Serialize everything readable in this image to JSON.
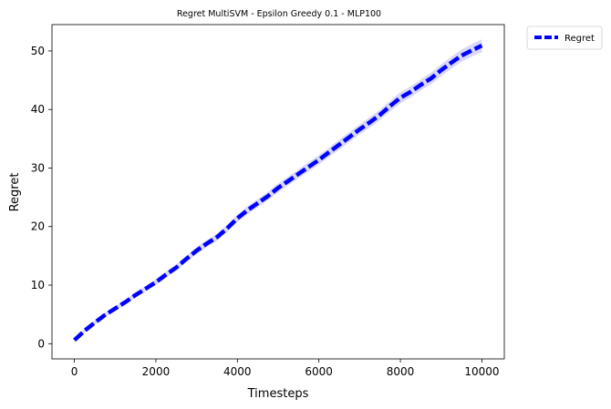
{
  "chart_data": {
    "type": "line",
    "title": "Regret MultiSVM - Epsilon Greedy 0.1 - MLP100",
    "xlabel": "Timesteps",
    "ylabel": "Regret",
    "xlim": [
      -550,
      10550
    ],
    "ylim": [
      -2.6,
      54.5
    ],
    "xticks": [
      0,
      2000,
      4000,
      6000,
      8000,
      10000
    ],
    "yticks": [
      0,
      10,
      20,
      30,
      40,
      50
    ],
    "grid": false,
    "legend_position": "outside-top-right",
    "series": [
      {
        "name": "Regret",
        "color": "#0000ff",
        "band_color": "#d8d8f8",
        "line_style": "dashed",
        "x": [
          0,
          250,
          500,
          750,
          1000,
          1250,
          1500,
          1750,
          2000,
          2250,
          2500,
          2750,
          3000,
          3250,
          3500,
          3750,
          4000,
          4250,
          4500,
          4750,
          5000,
          5250,
          5500,
          5750,
          6000,
          6250,
          6500,
          6750,
          7000,
          7250,
          7500,
          7750,
          8000,
          8250,
          8500,
          8750,
          9000,
          9250,
          9500,
          9750,
          10000
        ],
        "y": [
          0.6,
          2.2,
          3.6,
          4.9,
          6.0,
          7.1,
          8.3,
          9.4,
          10.5,
          11.8,
          13.0,
          14.5,
          15.9,
          17.1,
          18.2,
          19.7,
          21.4,
          22.8,
          24.0,
          25.2,
          26.6,
          27.8,
          29.0,
          30.2,
          31.4,
          32.7,
          34.0,
          35.3,
          36.6,
          37.8,
          39.1,
          40.6,
          42.0,
          43.0,
          44.2,
          45.3,
          46.7,
          48.0,
          49.2,
          50.1,
          50.9
        ],
        "band": [
          0.3,
          0.3,
          0.35,
          0.35,
          0.4,
          0.4,
          0.45,
          0.45,
          0.5,
          0.5,
          0.55,
          0.55,
          0.6,
          0.6,
          0.6,
          0.65,
          0.65,
          0.7,
          0.7,
          0.7,
          0.75,
          0.75,
          0.75,
          0.8,
          0.8,
          0.8,
          0.85,
          0.85,
          0.85,
          0.9,
          0.9,
          0.9,
          0.95,
          0.95,
          0.95,
          1.0,
          1.0,
          1.0,
          1.05,
          1.05,
          1.1
        ]
      }
    ]
  }
}
